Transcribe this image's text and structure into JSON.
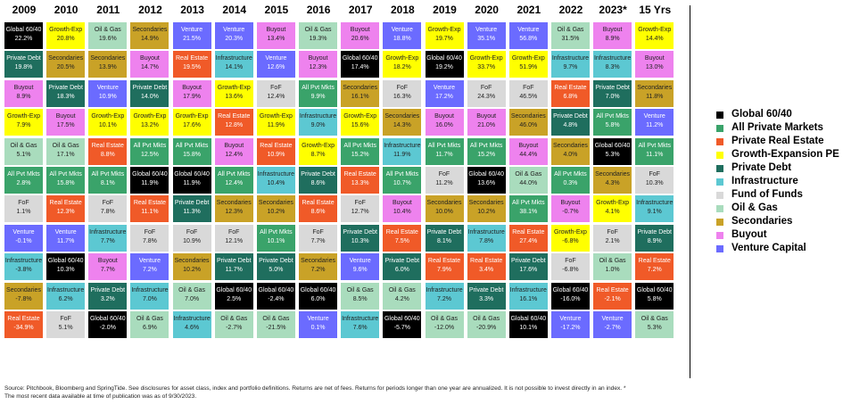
{
  "table": {
    "legend": [
      {
        "name": "Global 60/40",
        "cell_label": "Global 60/40",
        "color": "#000000"
      },
      {
        "name": "All Private Markets",
        "cell_label": "All Pvt Mkts",
        "color": "#3aa36a"
      },
      {
        "name": "Private Real Estate",
        "cell_label": "Real Estate",
        "color": "#f05a28"
      },
      {
        "name": "Growth-Expansion PE",
        "cell_label": "Growth-Exp",
        "color": "#ffff00"
      },
      {
        "name": "Private Debt",
        "cell_label": "Private Debt",
        "color": "#1f6e5e"
      },
      {
        "name": "Infrastructure",
        "cell_label": "Infrastructure",
        "color": "#5cc8d2"
      },
      {
        "name": "Fund of Funds",
        "cell_label": "FoF",
        "color": "#d9d9d9"
      },
      {
        "name": "Oil & Gas",
        "cell_label": "Oil & Gas",
        "color": "#a9dcbd"
      },
      {
        "name": "Secondaries",
        "cell_label": "Secondaries",
        "color": "#c9a227"
      },
      {
        "name": "Buyout",
        "cell_label": "Buyout",
        "color": "#ee82ee"
      },
      {
        "name": "Venture Capital",
        "cell_label": "Venture",
        "color": "#6b6bff"
      }
    ],
    "columns": [
      {
        "year": "2009",
        "cells": [
          [
            "Global 60/40",
            "22.2%"
          ],
          [
            "Private Debt",
            "19.8%"
          ],
          [
            "Buyout",
            "8.9%"
          ],
          [
            "Growth-Exp",
            "7.9%"
          ],
          [
            "Oil & Gas",
            "5.1%"
          ],
          [
            "All Pvt Mkts",
            "2.8%"
          ],
          [
            "FoF",
            "1.1%"
          ],
          [
            "Venture",
            "-0.1%"
          ],
          [
            "Infrastructure",
            "-3.8%"
          ],
          [
            "Secondaries",
            "-7.8%"
          ],
          [
            "Real Estate",
            "-34.9%"
          ]
        ]
      },
      {
        "year": "2010",
        "cells": [
          [
            "Growth-Exp",
            "20.8%"
          ],
          [
            "Secondaries",
            "20.5%"
          ],
          [
            "Private Debt",
            "18.3%"
          ],
          [
            "Buyout",
            "17.5%"
          ],
          [
            "Oil & Gas",
            "17.1%"
          ],
          [
            "All Pvt Mkts",
            "15.8%"
          ],
          [
            "Real Estate",
            "12.3%"
          ],
          [
            "Venture",
            "11.7%"
          ],
          [
            "Global 60/40",
            "10.3%"
          ],
          [
            "Infrastructure",
            "6.2%"
          ],
          [
            "FoF",
            "5.1%"
          ]
        ]
      },
      {
        "year": "2011",
        "cells": [
          [
            "Oil & Gas",
            "19.6%"
          ],
          [
            "Secondaries",
            "13.9%"
          ],
          [
            "Venture",
            "10.9%"
          ],
          [
            "Growth-Exp",
            "10.1%"
          ],
          [
            "Real Estate",
            "8.8%"
          ],
          [
            "All Pvt Mkts",
            "8.1%"
          ],
          [
            "FoF",
            "7.8%"
          ],
          [
            "Infrastructure",
            "7.7%"
          ],
          [
            "Buyout",
            "7.7%"
          ],
          [
            "Private Debt",
            "3.2%"
          ],
          [
            "Global 60/40",
            "-2.0%"
          ]
        ]
      },
      {
        "year": "2012",
        "cells": [
          [
            "Secondaries",
            "14.9%"
          ],
          [
            "Buyout",
            "14.7%"
          ],
          [
            "Private Debt",
            "14.0%"
          ],
          [
            "Growth-Exp",
            "13.2%"
          ],
          [
            "All Pvt Mkts",
            "12.5%"
          ],
          [
            "Global 60/40",
            "11.9%"
          ],
          [
            "Real Estate",
            "11.1%"
          ],
          [
            "FoF",
            "7.8%"
          ],
          [
            "Venture",
            "7.2%"
          ],
          [
            "Infrastructure",
            "7.0%"
          ],
          [
            "Oil & Gas",
            "6.9%"
          ]
        ]
      },
      {
        "year": "2013",
        "cells": [
          [
            "Venture",
            "21.5%"
          ],
          [
            "Real Estate",
            "19.5%"
          ],
          [
            "Buyout",
            "17.9%"
          ],
          [
            "Growth-Exp",
            "17.6%"
          ],
          [
            "All Pvt Mkts",
            "15.8%"
          ],
          [
            "Global 60/40",
            "11.9%"
          ],
          [
            "Private Debt",
            "11.3%"
          ],
          [
            "FoF",
            "10.9%"
          ],
          [
            "Secondaries",
            "10.2%"
          ],
          [
            "Oil & Gas",
            "7.0%"
          ],
          [
            "Infrastructure",
            "4.6%"
          ]
        ]
      },
      {
        "year": "2014",
        "cells": [
          [
            "Venture",
            "20.3%"
          ],
          [
            "Infrastructure",
            "14.1%"
          ],
          [
            "Growth-Exp",
            "13.6%"
          ],
          [
            "Real Estate",
            "12.8%"
          ],
          [
            "Buyout",
            "12.4%"
          ],
          [
            "All Pvt Mkts",
            "12.4%"
          ],
          [
            "Secondaries",
            "12.3%"
          ],
          [
            "FoF",
            "12.1%"
          ],
          [
            "Private Debt",
            "11.7%"
          ],
          [
            "Global 60/40",
            "2.5%"
          ],
          [
            "Oil & Gas",
            "-2.7%"
          ]
        ]
      },
      {
        "year": "2015",
        "cells": [
          [
            "Buyout",
            "13.4%"
          ],
          [
            "Venture",
            "12.6%"
          ],
          [
            "FoF",
            "12.4%"
          ],
          [
            "Growth-Exp",
            "11.9%"
          ],
          [
            "Real Estate",
            "10.9%"
          ],
          [
            "Infrastructure",
            "10.4%"
          ],
          [
            "Secondaries",
            "10.2%"
          ],
          [
            "All Pvt Mkts",
            "10.1%"
          ],
          [
            "Private Debt",
            "5.0%"
          ],
          [
            "Global 60/40",
            "-2.4%"
          ],
          [
            "Oil & Gas",
            "-21.5%"
          ]
        ]
      },
      {
        "year": "2016",
        "cells": [
          [
            "Oil & Gas",
            "19.3%"
          ],
          [
            "Buyout",
            "12.3%"
          ],
          [
            "All Pvt Mkts",
            "9.9%"
          ],
          [
            "Infrastructure",
            "9.0%"
          ],
          [
            "Growth-Exp",
            "8.7%"
          ],
          [
            "Private Debt",
            "8.6%"
          ],
          [
            "Real Estate",
            "8.6%"
          ],
          [
            "FoF",
            "7.7%"
          ],
          [
            "Secondaries",
            "7.2%"
          ],
          [
            "Global 60/40",
            "6.0%"
          ],
          [
            "Venture",
            "0.1%"
          ]
        ]
      },
      {
        "year": "2017",
        "cells": [
          [
            "Buyout",
            "20.6%"
          ],
          [
            "Global 60/40",
            "17.4%"
          ],
          [
            "Secondaries",
            "16.1%"
          ],
          [
            "Growth-Exp",
            "15.6%"
          ],
          [
            "All Pvt Mkts",
            "15.2%"
          ],
          [
            "Real Estate",
            "13.3%"
          ],
          [
            "FoF",
            "12.7%"
          ],
          [
            "Private Debt",
            "10.3%"
          ],
          [
            "Venture",
            "9.6%"
          ],
          [
            "Oil & Gas",
            "8.5%"
          ],
          [
            "Infrastructure",
            "7.6%"
          ]
        ]
      },
      {
        "year": "2018",
        "cells": [
          [
            "Venture",
            "18.8%"
          ],
          [
            "Growth-Exp",
            "18.2%"
          ],
          [
            "FoF",
            "16.3%"
          ],
          [
            "Secondaries",
            "14.3%"
          ],
          [
            "Infrastructure",
            "11.9%"
          ],
          [
            "All Pvt Mkts",
            "10.7%"
          ],
          [
            "Buyout",
            "10.4%"
          ],
          [
            "Real Estate",
            "7.5%"
          ],
          [
            "Private Debt",
            "6.0%"
          ],
          [
            "Oil & Gas",
            "4.2%"
          ],
          [
            "Global 60/40",
            "-5.7%"
          ]
        ]
      },
      {
        "year": "2019",
        "cells": [
          [
            "Growth-Exp",
            "19.7%"
          ],
          [
            "Global 60/40",
            "19.2%"
          ],
          [
            "Venture",
            "17.2%"
          ],
          [
            "Buyout",
            "16.0%"
          ],
          [
            "All Pvt Mkts",
            "11.7%"
          ],
          [
            "FoF",
            "11.2%"
          ],
          [
            "Secondaries",
            "10.0%"
          ],
          [
            "Private Debt",
            "8.1%"
          ],
          [
            "Real Estate",
            "7.9%"
          ],
          [
            "Infrastructure",
            "7.2%"
          ],
          [
            "Oil & Gas",
            "-12.0%"
          ]
        ]
      },
      {
        "year": "2020",
        "cells": [
          [
            "Venture",
            "35.1%"
          ],
          [
            "Growth-Exp",
            "33.7%"
          ],
          [
            "FoF",
            "24.3%"
          ],
          [
            "Buyout",
            "21.0%"
          ],
          [
            "All Pvt Mkts",
            "15.2%"
          ],
          [
            "Global 60/40",
            "13.6%"
          ],
          [
            "Secondaries",
            "10.2%"
          ],
          [
            "Infrastructure",
            "7.8%"
          ],
          [
            "Real Estate",
            "3.4%"
          ],
          [
            "Private Debt",
            "3.3%"
          ],
          [
            "Oil & Gas",
            "-20.9%"
          ]
        ]
      },
      {
        "year": "2021",
        "cells": [
          [
            "Venture",
            "56.8%"
          ],
          [
            "Growth-Exp",
            "51.9%"
          ],
          [
            "FoF",
            "46.5%"
          ],
          [
            "Secondaries",
            "46.0%"
          ],
          [
            "Buyout",
            "44.4%"
          ],
          [
            "Oil & Gas",
            "44.0%"
          ],
          [
            "All Pvt Mkts",
            "38.1%"
          ],
          [
            "Real Estate",
            "27.4%"
          ],
          [
            "Private Debt",
            "17.6%"
          ],
          [
            "Infrastructure",
            "16.1%"
          ],
          [
            "Global 60/40",
            "10.1%"
          ]
        ]
      },
      {
        "year": "2022",
        "cells": [
          [
            "Oil & Gas",
            "31.5%"
          ],
          [
            "Infrastructure",
            "9.7%"
          ],
          [
            "Real Estate",
            "6.8%"
          ],
          [
            "Private Debt",
            "4.8%"
          ],
          [
            "Secondaries",
            "4.0%"
          ],
          [
            "All Pvt Mkts",
            "0.3%"
          ],
          [
            "Buyout",
            "-0.7%"
          ],
          [
            "Growth-Exp",
            "-6.8%"
          ],
          [
            "FoF",
            "-6.8%"
          ],
          [
            "Global 60/40",
            "-16.0%"
          ],
          [
            "Venture",
            "-17.2%"
          ]
        ]
      },
      {
        "year": "2023*",
        "cells": [
          [
            "Buyout",
            "8.9%"
          ],
          [
            "Infrastructure",
            "8.3%"
          ],
          [
            "Private Debt",
            "7.0%"
          ],
          [
            "All Pvt Mkts",
            "5.8%"
          ],
          [
            "Global 60/40",
            "5.3%"
          ],
          [
            "Secondaries",
            "4.3%"
          ],
          [
            "Growth-Exp",
            "4.1%"
          ],
          [
            "FoF",
            "2.1%"
          ],
          [
            "Oil & Gas",
            "1.0%"
          ],
          [
            "Real Estate",
            "-2.1%"
          ],
          [
            "Venture",
            "-2.7%"
          ]
        ]
      },
      {
        "year": "15 Yrs",
        "cells": [
          [
            "Growth-Exp",
            "14.4%"
          ],
          [
            "Buyout",
            "13.0%"
          ],
          [
            "Secondaries",
            "11.8%"
          ],
          [
            "Venture",
            "11.2%"
          ],
          [
            "All Pvt Mkts",
            "11.1%"
          ],
          [
            "FoF",
            "10.3%"
          ],
          [
            "Infrastructure",
            "9.1%"
          ],
          [
            "Private Debt",
            "8.9%"
          ],
          [
            "Real Estate",
            "7.2%"
          ],
          [
            "Global 60/40",
            "5.8%"
          ],
          [
            "Oil & Gas",
            "5.3%"
          ]
        ]
      }
    ],
    "footnote": "Source: Pitchbook, Bloomberg and SpringTide. See disclosures for asset class, index and portfolio definitions. Returns are net of fees. Returns for periods longer than one year are annualized. It is not possible to invest directly in an index. * The most recent data available at time of publication was as of 9/30/2023."
  }
}
